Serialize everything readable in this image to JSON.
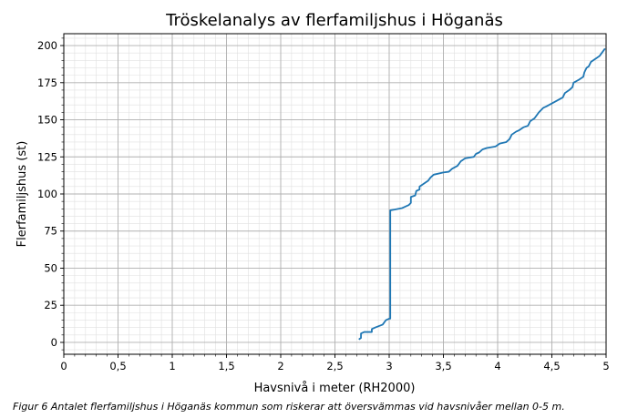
{
  "chart_data": {
    "type": "line",
    "title": "Tröskelanalys av flerfamiljshus i Höganäs",
    "xlabel": "Havsnivå i meter (RH2000)",
    "ylabel": "Flerfamiljshus (st)",
    "xlim": [
      0,
      5
    ],
    "ylim": [
      -8,
      208
    ],
    "xticks": [
      0,
      0.5,
      1,
      1.5,
      2,
      2.5,
      3,
      3.5,
      4,
      4.5,
      5
    ],
    "xtick_labels": [
      "0",
      "0,5",
      "1",
      "1,5",
      "2",
      "2,5",
      "3",
      "3,5",
      "4",
      "4,5",
      "5"
    ],
    "yticks": [
      0,
      25,
      50,
      75,
      100,
      125,
      150,
      175,
      200
    ],
    "ytick_labels": [
      "0",
      "25",
      "50",
      "75",
      "100",
      "125",
      "150",
      "175",
      "200"
    ],
    "grid": "major and minor",
    "line_color": "#1f77b4",
    "series": [
      {
        "points": [
          [
            2.72,
            2
          ],
          [
            2.74,
            3
          ],
          [
            2.74,
            6
          ],
          [
            2.77,
            7
          ],
          [
            2.84,
            7
          ],
          [
            2.84,
            9
          ],
          [
            2.87,
            10
          ],
          [
            2.94,
            12
          ],
          [
            2.97,
            15
          ],
          [
            3.0,
            16
          ],
          [
            3.01,
            16
          ],
          [
            3.01,
            89
          ],
          [
            3.05,
            89.5
          ],
          [
            3.12,
            90.5
          ],
          [
            3.18,
            92.5
          ],
          [
            3.2,
            94
          ],
          [
            3.2,
            98
          ],
          [
            3.24,
            99
          ],
          [
            3.25,
            102
          ],
          [
            3.28,
            103
          ],
          [
            3.28,
            105
          ],
          [
            3.32,
            107
          ],
          [
            3.36,
            109
          ],
          [
            3.38,
            111
          ],
          [
            3.41,
            113
          ],
          [
            3.5,
            114.5
          ],
          [
            3.55,
            115
          ],
          [
            3.58,
            117
          ],
          [
            3.63,
            119
          ],
          [
            3.66,
            122
          ],
          [
            3.7,
            124
          ],
          [
            3.78,
            125
          ],
          [
            3.8,
            127
          ],
          [
            3.83,
            128
          ],
          [
            3.86,
            130
          ],
          [
            3.9,
            131
          ],
          [
            3.98,
            132
          ],
          [
            4.02,
            134
          ],
          [
            4.08,
            135
          ],
          [
            4.11,
            137
          ],
          [
            4.13,
            140
          ],
          [
            4.17,
            142
          ],
          [
            4.2,
            143
          ],
          [
            4.24,
            145
          ],
          [
            4.28,
            146
          ],
          [
            4.3,
            149
          ],
          [
            4.34,
            151
          ],
          [
            4.38,
            155
          ],
          [
            4.42,
            158
          ],
          [
            4.45,
            159
          ],
          [
            4.5,
            161
          ],
          [
            4.55,
            163
          ],
          [
            4.6,
            165
          ],
          [
            4.62,
            168
          ],
          [
            4.66,
            170
          ],
          [
            4.69,
            172
          ],
          [
            4.7,
            175
          ],
          [
            4.75,
            177
          ],
          [
            4.79,
            179
          ],
          [
            4.8,
            182
          ],
          [
            4.82,
            185
          ],
          [
            4.84,
            186
          ],
          [
            4.86,
            189
          ],
          [
            4.9,
            191
          ],
          [
            4.94,
            193
          ],
          [
            4.98,
            197
          ],
          [
            4.99,
            198
          ]
        ]
      }
    ]
  },
  "caption": "Figur 6 Antalet flerfamiljshus i Höganäs kommun som riskerar att översvämmas vid havsnivåer mellan 0-5 m."
}
